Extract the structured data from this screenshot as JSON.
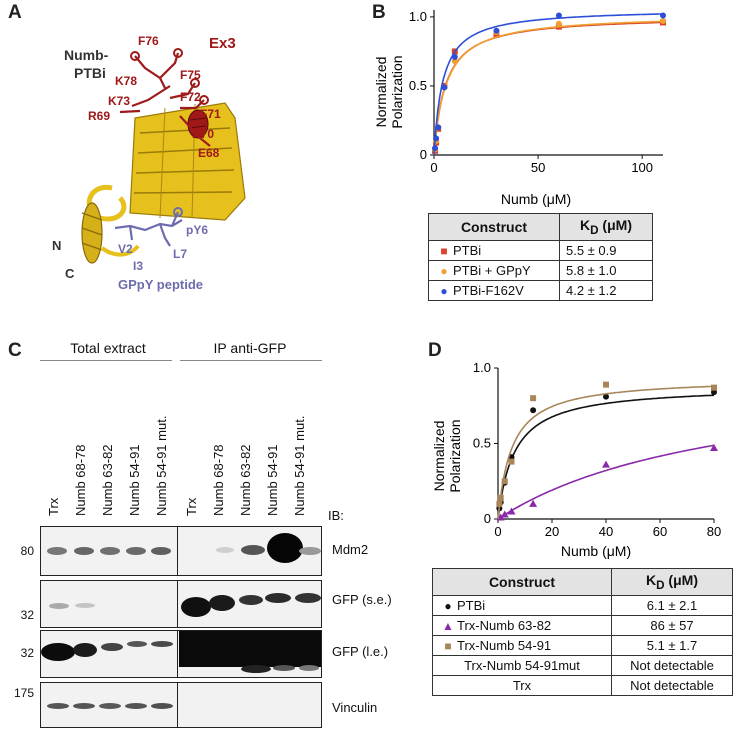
{
  "panels": {
    "a": "A",
    "b": "B",
    "c": "C",
    "d": "D"
  },
  "panel_a": {
    "title_line1": "Numb-",
    "title_line2": "PTBi",
    "exon_label": "Ex3",
    "residues": [
      "F76",
      "F75",
      "K78",
      "F72",
      "K73",
      "R69",
      "F71",
      "K70",
      "E68"
    ],
    "termini": {
      "n": "N",
      "c": "C"
    },
    "peptide_residues": [
      "pY6",
      "V2",
      "I3",
      "L7"
    ],
    "peptide_label": "GPpY peptide",
    "colors": {
      "helix": "#e8c21a",
      "exon": "#9e1b1b",
      "peptide": "#6c6cae"
    }
  },
  "chart_data": [
    {
      "type": "line",
      "panel": "B",
      "xlabel": "Numb (μM)",
      "ylabel_line1": "Normalized",
      "ylabel_line2": "Polarization",
      "xlim": [
        0,
        110
      ],
      "ylim": [
        0,
        1.05
      ],
      "xticks": [
        "0",
        "50",
        "100"
      ],
      "yticks": [
        "0",
        "0.5",
        "1.0"
      ],
      "series": [
        {
          "name": "PTBi",
          "color": "#d9432a",
          "marker": "square",
          "kd": 5.5,
          "x": [
            0.5,
            1,
            2,
            5,
            10,
            30,
            60,
            110
          ],
          "y": [
            0.03,
            0.09,
            0.19,
            0.5,
            0.75,
            0.87,
            0.93,
            0.96
          ]
        },
        {
          "name": "PTBi + GPpY",
          "color": "#f0a030",
          "marker": "circle",
          "kd": 5.8,
          "x": [
            0.5,
            1,
            2,
            5,
            10,
            30,
            60,
            110
          ],
          "y": [
            0.04,
            0.1,
            0.2,
            0.49,
            0.68,
            0.89,
            0.95,
            0.97
          ]
        },
        {
          "name": "PTBi-F162V",
          "color": "#2d4fd8",
          "marker": "circle",
          "kd": 4.2,
          "x": [
            0.5,
            1,
            2,
            5,
            10,
            30,
            60,
            110
          ],
          "y": [
            0.05,
            0.12,
            0.2,
            0.49,
            0.71,
            0.9,
            1.01,
            1.01
          ]
        }
      ]
    },
    {
      "type": "line",
      "panel": "D",
      "xlabel": "Numb (μM)",
      "ylabel_line1": "Normalized",
      "ylabel_line2": "Polarization",
      "xlim": [
        0,
        80
      ],
      "ylim": [
        0,
        1.0
      ],
      "xticks": [
        "0",
        "20",
        "40",
        "60",
        "80"
      ],
      "yticks": [
        "0",
        "0.5",
        "1.0"
      ],
      "series": [
        {
          "name": "PTBi",
          "color": "#111111",
          "marker": "circle",
          "kd": 6.1,
          "x": [
            0.5,
            1,
            2.5,
            5,
            13,
            40,
            80
          ],
          "y": [
            0.07,
            0.11,
            0.24,
            0.41,
            0.72,
            0.81,
            0.84
          ]
        },
        {
          "name": "Trx-Numb 63-82",
          "color": "#8a2aa8",
          "marker": "triangle",
          "kd": 86,
          "x": [
            1,
            2.5,
            5,
            13,
            40,
            80
          ],
          "y": [
            0.01,
            0.03,
            0.05,
            0.1,
            0.36,
            0.47
          ]
        },
        {
          "name": "Trx-Numb 54-91",
          "color": "#a8865a",
          "marker": "square",
          "kd": 5.1,
          "x": [
            0.5,
            1,
            2.5,
            5,
            13,
            40,
            80
          ],
          "y": [
            0.1,
            0.14,
            0.25,
            0.38,
            0.8,
            0.89,
            0.87
          ]
        }
      ]
    }
  ],
  "table_b": {
    "header": {
      "construct": "Construct",
      "kd_k": "K",
      "kd_sub": "D",
      "kd_unit": " (μM)"
    },
    "rows": [
      {
        "construct": "PTBi",
        "kd": "5.5 ± 0.9",
        "color": "#d9432a",
        "marker": "■"
      },
      {
        "construct": "PTBi + GPpY",
        "kd": "5.8 ± 1.0",
        "color": "#f0a030",
        "marker": "●"
      },
      {
        "construct": "PTBi-F162V",
        "kd": "4.2 ± 1.2",
        "color": "#2d4fd8",
        "marker": "●"
      }
    ]
  },
  "table_d": {
    "header": {
      "construct": "Construct",
      "kd_k": "K",
      "kd_sub": "D",
      "kd_unit": " (μM)"
    },
    "rows": [
      {
        "construct": "PTBi",
        "kd": "6.1 ± 2.1",
        "color": "#111111",
        "marker": "●"
      },
      {
        "construct": "Trx-Numb 63-82",
        "kd": "86 ± 57",
        "color": "#8a2aa8",
        "marker": "▲"
      },
      {
        "construct": "Trx-Numb 54-91",
        "kd": "5.1 ± 1.7",
        "color": "#a8865a",
        "marker": "■"
      },
      {
        "construct": "Trx-Numb 54-91mut",
        "kd": "Not detectable",
        "color": "",
        "marker": ""
      },
      {
        "construct": "Trx",
        "kd": "Not detectable",
        "color": "",
        "marker": ""
      }
    ]
  },
  "panel_c": {
    "group1": "Total extract",
    "group2": "IP anti-GFP",
    "lanes": [
      "Trx",
      "Numb 68-78",
      "Numb 63-82",
      "Numb 54-91",
      "Numb 54-91 mut."
    ],
    "ib_label": "IB:",
    "blots": [
      {
        "label": "Mdm2",
        "mw": "80"
      },
      {
        "label": "GFP (s.e.)",
        "mw": "32"
      },
      {
        "label": "GFP (l.e.)",
        "mw": "32"
      },
      {
        "label": "Vinculin",
        "mw": "175"
      }
    ]
  }
}
